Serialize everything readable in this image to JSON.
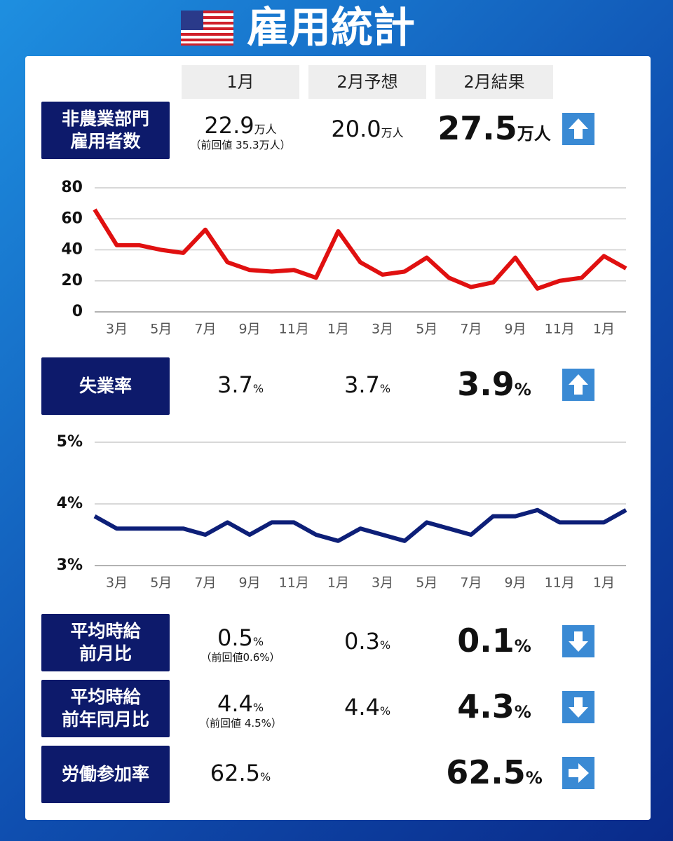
{
  "title": "雇用統計",
  "columns": [
    "1月",
    "2月予想",
    "2月結果"
  ],
  "rows": [
    {
      "label": "非農業部門\n雇用者数",
      "prev": "22.9",
      "prev_unit": "万人",
      "prev_note": "（前回値 35.3万人）",
      "forecast": "20.0",
      "forecast_unit": "万人",
      "result": "27.5",
      "result_unit": "万人",
      "arrow": "up"
    },
    {
      "label": "失業率",
      "prev": "3.7",
      "prev_unit": "%",
      "forecast": "3.7",
      "forecast_unit": "%",
      "result": "3.9",
      "result_unit": "%",
      "arrow": "up"
    },
    {
      "label": "平均時給\n前月比",
      "prev": "0.5",
      "prev_unit": "%",
      "prev_note": "（前回値0.6%）",
      "forecast": "0.3",
      "forecast_unit": "%",
      "result": "0.1",
      "result_unit": "%",
      "arrow": "down"
    },
    {
      "label": "平均時給\n前年同月比",
      "prev": "4.4",
      "prev_unit": "%",
      "prev_note": "（前回値 4.5%）",
      "forecast": "4.4",
      "forecast_unit": "%",
      "result": "4.3",
      "result_unit": "%",
      "arrow": "down"
    },
    {
      "label": "労働参加率",
      "prev": "62.5",
      "prev_unit": "%",
      "result": "62.5",
      "result_unit": "%",
      "arrow": "right"
    }
  ],
  "chart_data": [
    {
      "type": "line",
      "color": "#e01010",
      "grid": true,
      "categories": [
        null,
        "3月",
        null,
        "5月",
        null,
        "7月",
        null,
        "9月",
        null,
        "11月",
        null,
        "1月",
        null,
        "3月",
        null,
        "5月",
        null,
        "7月",
        null,
        "9月",
        null,
        "11月",
        null,
        "1月",
        null
      ],
      "values": [
        66,
        43,
        43,
        40,
        38,
        53,
        32,
        27,
        26,
        27,
        22,
        52,
        32,
        24,
        26,
        35,
        22,
        16,
        19,
        35,
        15,
        20,
        22,
        36,
        28
      ],
      "ylim": [
        0,
        80
      ],
      "yticks": [
        0,
        20,
        40,
        60,
        80
      ]
    },
    {
      "type": "line",
      "color": "#0d1f78",
      "grid": true,
      "categories": [
        null,
        "3月",
        null,
        "5月",
        null,
        "7月",
        null,
        "9月",
        null,
        "11月",
        null,
        "1月",
        null,
        "3月",
        null,
        "5月",
        null,
        "7月",
        null,
        "9月",
        null,
        "11月",
        null,
        "1月",
        null
      ],
      "values": [
        3.8,
        3.6,
        3.6,
        3.6,
        3.6,
        3.5,
        3.7,
        3.5,
        3.7,
        3.7,
        3.5,
        3.4,
        3.6,
        3.5,
        3.4,
        3.7,
        3.6,
        3.5,
        3.8,
        3.8,
        3.9,
        3.7,
        3.7,
        3.7,
        3.9
      ],
      "ylim": [
        3,
        5
      ],
      "yticks": [
        {
          "value": 3,
          "label": "3%"
        },
        {
          "value": 4,
          "label": "4%"
        },
        {
          "value": 5,
          "label": "5%"
        }
      ]
    }
  ]
}
